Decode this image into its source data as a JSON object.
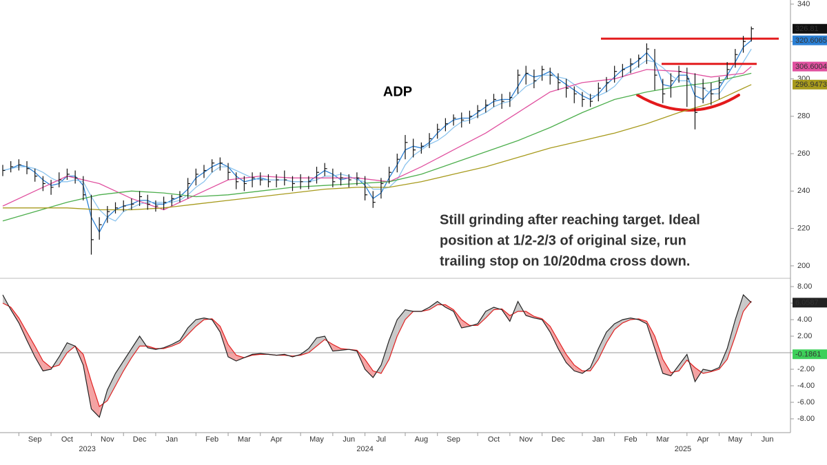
{
  "chart_data": [
    {
      "type": "ohlc",
      "title": "ADP",
      "annotation": [
        "Still grinding after reaching target. Ideal",
        "position at 1/2-2/3 of original size, run",
        "trailing stop on 10/20dma cross down."
      ],
      "annotation_color": "#e8000b",
      "categories": [
        null,
        null,
        "Sep",
        null,
        null,
        null,
        "Oct",
        null,
        null,
        null,
        null,
        "Nov",
        null,
        null,
        null,
        "Dec",
        null,
        null,
        null,
        "Jan",
        null,
        null,
        null,
        null,
        "Feb",
        null,
        null,
        null,
        "Mar",
        null,
        null,
        null,
        "Apr",
        null,
        null,
        null,
        null,
        "May",
        null,
        null,
        null,
        "Jun",
        null,
        null,
        null,
        "Jul",
        null,
        null,
        null,
        null,
        "Aug",
        null,
        null,
        null,
        "Sep",
        null,
        null,
        null,
        null,
        "Oct",
        null,
        null,
        null,
        "Nov",
        null,
        null,
        null,
        "Dec",
        null,
        null,
        null,
        null,
        "Jan",
        null,
        null,
        null,
        "Feb",
        null,
        null,
        null,
        "Mar",
        null,
        null,
        null,
        null,
        "Apr",
        null,
        null,
        null,
        "May",
        null,
        null,
        null,
        "Jun"
      ],
      "x_groups": [
        {
          "label": "2023",
          "start": 2,
          "end": 15
        },
        {
          "label": "2024",
          "start": 19,
          "end": 67
        },
        {
          "label": "2025",
          "start": 72,
          "end": 93
        }
      ],
      "ylim": [
        194.8,
        342.2
      ],
      "yticks": [
        200,
        220,
        240,
        260,
        280,
        300,
        320,
        340
      ],
      "levels": [
        321.5,
        308
      ],
      "level_color": "#e31a1c",
      "series": [
        {
          "type": "ohlc",
          "color": "#111111",
          "label_last": true,
          "label_text_color": "#ffffff",
          "values": [
            251,
            253,
            254,
            252,
            248,
            244,
            242,
            246,
            249,
            247,
            238,
            214,
            222,
            229,
            231,
            232,
            233,
            237,
            233,
            232,
            234,
            236,
            237,
            244,
            249,
            251,
            255,
            255,
            250,
            245,
            244,
            247,
            246,
            245,
            246,
            246,
            244,
            245,
            245,
            250,
            252,
            245,
            247,
            246,
            247,
            238,
            234,
            244,
            250,
            257,
            266,
            262,
            264,
            268,
            273,
            276,
            279,
            278,
            280,
            283,
            286,
            289,
            288,
            290,
            302,
            303,
            299,
            305,
            302,
            298,
            295,
            292,
            289,
            288,
            295,
            298,
            304,
            305,
            308,
            311,
            316,
            302,
            292,
            299,
            304,
            300,
            282,
            295,
            292,
            298,
            305,
            313,
            320,
            326.81
          ],
          "high": [
            254,
            256,
            257,
            256,
            252,
            248,
            246,
            250,
            252,
            251,
            248,
            238,
            226,
            232,
            234,
            235,
            236,
            240,
            238,
            235,
            237,
            238,
            240,
            247,
            252,
            254,
            257,
            258,
            255,
            250,
            248,
            250,
            250,
            249,
            249,
            251,
            248,
            249,
            248,
            253,
            255,
            252,
            250,
            249,
            250,
            248,
            240,
            247,
            253,
            260,
            270,
            268,
            266,
            271,
            276,
            279,
            281,
            282,
            283,
            286,
            289,
            292,
            292,
            293,
            305,
            307,
            305,
            307,
            306,
            303,
            300,
            296,
            293,
            292,
            298,
            301,
            307,
            308,
            311,
            313,
            319,
            316,
            300,
            303,
            307,
            306,
            303,
            300,
            298,
            301,
            309,
            316,
            323,
            328
          ],
          "low": [
            248,
            250,
            251,
            249,
            245,
            240,
            238,
            242,
            246,
            244,
            235,
            206,
            214,
            223,
            228,
            229,
            230,
            232,
            230,
            229,
            230,
            232,
            234,
            236,
            243,
            247,
            250,
            251,
            246,
            241,
            240,
            242,
            243,
            242,
            242,
            243,
            240,
            241,
            241,
            244,
            248,
            242,
            243,
            242,
            243,
            235,
            231,
            236,
            244,
            250,
            257,
            258,
            260,
            263,
            268,
            272,
            275,
            274,
            276,
            279,
            282,
            285,
            284,
            285,
            292,
            297,
            295,
            299,
            297,
            294,
            290,
            287,
            285,
            285,
            288,
            293,
            298,
            301,
            303,
            306,
            308,
            294,
            287,
            290,
            298,
            285,
            273,
            287,
            286,
            289,
            300,
            306,
            314,
            320
          ]
        },
        {
          "type": "line",
          "color": "#2a7fd4",
          "label_last": true,
          "label_text_color": "#000000",
          "values": [
            251,
            252,
            254,
            253,
            250,
            246,
            243,
            244,
            248,
            248,
            243,
            226,
            218,
            226,
            230,
            232,
            233,
            235,
            235,
            233,
            233,
            235,
            237,
            241,
            247,
            250,
            253,
            255,
            253,
            248,
            245,
            246,
            247,
            246,
            246,
            246,
            245,
            245,
            245,
            248,
            251,
            249,
            246,
            247,
            247,
            243,
            236,
            239,
            247,
            254,
            262,
            264,
            263,
            266,
            271,
            275,
            278,
            279,
            279,
            282,
            285,
            288,
            289,
            289,
            296,
            303,
            301,
            302,
            304,
            300,
            297,
            294,
            291,
            289,
            292,
            297,
            301,
            305,
            307,
            310,
            314,
            309,
            297,
            296,
            302,
            302,
            291,
            289,
            294,
            295,
            302,
            309,
            317,
            320.6065
          ]
        },
        {
          "type": "line",
          "color": "#8cc4ee",
          "values": [
            251,
            252,
            253,
            253,
            252,
            250,
            247,
            245,
            245,
            246,
            245,
            237,
            230,
            226,
            224,
            229,
            231,
            233,
            234,
            234,
            234,
            234,
            235,
            238,
            242,
            245,
            250,
            253,
            253,
            251,
            249,
            247,
            246,
            246,
            246,
            246,
            245,
            245,
            245,
            246,
            248,
            248,
            249,
            248,
            246,
            245,
            241,
            241,
            242,
            246,
            254,
            259,
            262,
            265,
            267,
            270,
            274,
            277,
            278,
            280,
            282,
            285,
            287,
            288,
            292,
            296,
            298,
            302,
            302,
            301,
            300,
            297,
            294,
            291,
            291,
            293,
            296,
            301,
            304,
            307,
            310,
            309,
            306,
            302,
            299,
            299,
            296,
            295,
            292,
            292,
            298,
            302,
            309,
            316
          ]
        },
        {
          "type": "line",
          "color": "#e0509f",
          "label_last": true,
          "label_text_color": "#000000",
          "x": [
            0,
            4,
            8,
            12,
            16,
            20,
            24,
            28,
            32,
            36,
            40,
            44,
            48,
            52,
            56,
            60,
            64,
            68,
            72,
            76,
            80,
            84,
            88,
            92,
            93
          ],
          "values": [
            232,
            240,
            248,
            244,
            236,
            230,
            238,
            246,
            248,
            247,
            247,
            247,
            245,
            253,
            262,
            271,
            282,
            293,
            298,
            300,
            305,
            304,
            301,
            303,
            306.6004
          ]
        },
        {
          "type": "line",
          "color": "#4cae4c",
          "x": [
            0,
            4,
            8,
            12,
            16,
            20,
            24,
            28,
            32,
            36,
            40,
            44,
            48,
            52,
            56,
            60,
            64,
            68,
            72,
            76,
            80,
            84,
            88,
            92,
            93
          ],
          "values": [
            224,
            229,
            234,
            238,
            240,
            239,
            237,
            238,
            240,
            242,
            243,
            244,
            245,
            249,
            255,
            261,
            267,
            274,
            282,
            289,
            293,
            296,
            298,
            302,
            303
          ]
        },
        {
          "type": "line",
          "color": "#a79a1c",
          "label_last": true,
          "label_text_color": "#000000",
          "x": [
            0,
            4,
            8,
            12,
            16,
            20,
            24,
            28,
            32,
            36,
            40,
            44,
            48,
            52,
            56,
            60,
            64,
            68,
            72,
            76,
            80,
            84,
            88,
            92,
            93
          ],
          "values": [
            231,
            231,
            231,
            230,
            230,
            231,
            233,
            235,
            237,
            239,
            241,
            242,
            242,
            245,
            249,
            253,
            258,
            263,
            267,
            271,
            276,
            282,
            287,
            295,
            296.9473
          ]
        }
      ]
    },
    {
      "type": "line",
      "ylim": [
        -9.67,
        8.67
      ],
      "yticks": [
        {
          "value": 8,
          "label": "8.00"
        },
        {
          "value": 6,
          "label": "6.00"
        },
        {
          "value": 4,
          "label": "4.00"
        },
        {
          "value": 2,
          "label": "2.00"
        },
        {
          "value": 0,
          "label": "0.00"
        },
        {
          "value": -2,
          "label": "-2.00"
        },
        {
          "value": -4,
          "label": "-4.00"
        },
        {
          "value": -6,
          "label": "-6.00"
        },
        {
          "value": -8,
          "label": "-8.00"
        }
      ],
      "zero_line": true,
      "fill_colors": {
        "above": "#c9c9c9",
        "below": "#f4a3a3"
      },
      "difference": -0.1861,
      "difference_color": "#3dd05a",
      "series": [
        {
          "color": "#222222",
          "label_last": true,
          "label_text_color": "#ffffff",
          "values": [
            7.0,
            5.2,
            3.6,
            1.5,
            -0.5,
            -2.2,
            -2.0,
            -0.5,
            1.2,
            0.8,
            -1.5,
            -6.8,
            -7.8,
            -4.5,
            -2.5,
            -1.0,
            0.5,
            2.0,
            0.6,
            0.4,
            0.6,
            1.0,
            1.5,
            3.0,
            4.0,
            4.2,
            4.0,
            2.5,
            -0.5,
            -1.0,
            -0.6,
            -0.2,
            -0.1,
            -0.2,
            -0.3,
            -0.2,
            -0.5,
            -0.2,
            0.5,
            1.8,
            2.0,
            0.2,
            0.3,
            0.4,
            0.2,
            -2.0,
            -3.0,
            -1.5,
            1.5,
            4.0,
            5.2,
            5.0,
            5.0,
            5.5,
            6.2,
            5.5,
            5.0,
            3.0,
            3.2,
            3.5,
            5.0,
            5.5,
            5.2,
            3.8,
            6.2,
            4.5,
            4.2,
            4.0,
            2.5,
            0.5,
            -1.2,
            -2.2,
            -2.5,
            -1.8,
            0.5,
            2.5,
            3.5,
            4.0,
            4.2,
            4.0,
            3.5,
            0.5,
            -2.5,
            -2.8,
            -1.5,
            -0.2,
            -3.5,
            -2.0,
            -2.2,
            -1.8,
            0.5,
            4.0,
            7.0,
            6.0587
          ]
        },
        {
          "color": "#e02020",
          "values": [
            6.0,
            5.5,
            4.2,
            2.5,
            0.8,
            -1.0,
            -1.8,
            -1.5,
            0.0,
            0.8,
            -0.2,
            -3.5,
            -6.5,
            -5.8,
            -4.0,
            -2.2,
            -0.6,
            0.8,
            0.8,
            0.5,
            0.5,
            0.8,
            1.2,
            2.2,
            3.2,
            4.0,
            4.1,
            3.2,
            1.0,
            -0.3,
            -0.6,
            -0.3,
            -0.2,
            -0.2,
            -0.3,
            -0.3,
            -0.4,
            -0.3,
            0.0,
            0.8,
            1.6,
            1.0,
            0.5,
            0.4,
            0.3,
            -0.8,
            -2.2,
            -2.5,
            -0.8,
            2.0,
            4.0,
            5.0,
            5.0,
            5.2,
            5.8,
            5.8,
            5.2,
            4.0,
            3.3,
            3.3,
            4.2,
            5.2,
            5.3,
            4.5,
            5.0,
            5.0,
            4.4,
            4.1,
            3.2,
            1.5,
            -0.2,
            -1.5,
            -2.2,
            -2.2,
            -0.8,
            1.2,
            2.8,
            3.6,
            4.0,
            4.1,
            3.8,
            2.0,
            -0.8,
            -2.4,
            -2.2,
            -0.9,
            -1.8,
            -2.5,
            -2.3,
            -2.0,
            -0.8,
            2.0,
            5.0,
            6.2448
          ]
        }
      ]
    }
  ]
}
